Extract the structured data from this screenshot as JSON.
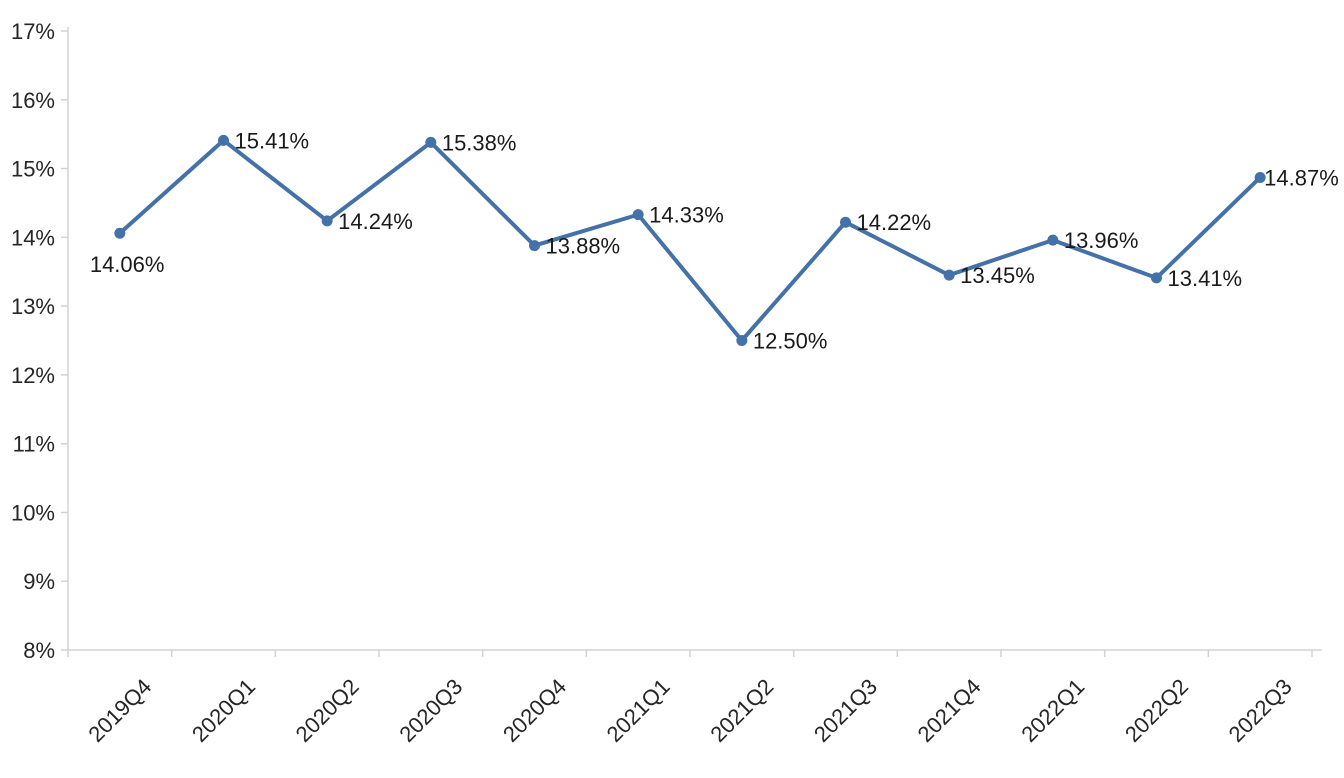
{
  "chart_data": {
    "type": "line",
    "title": "",
    "xlabel": "",
    "ylabel": "",
    "categories": [
      "2019Q4",
      "2020Q1",
      "2020Q2",
      "2020Q3",
      "2020Q4",
      "2021Q1",
      "2021Q2",
      "2021Q3",
      "2021Q4",
      "2022Q1",
      "2022Q2",
      "2022Q3"
    ],
    "series": [
      {
        "name": "quarterly-percentage",
        "values": [
          14.06,
          15.41,
          14.24,
          15.38,
          13.88,
          14.33,
          12.5,
          14.22,
          13.45,
          13.96,
          13.41,
          14.87
        ]
      }
    ],
    "data_labels": [
      "14.06%",
      "15.41%",
      "14.24%",
      "15.38%",
      "13.88%",
      "14.33%",
      "12.50%",
      "14.22%",
      "13.45%",
      "13.96%",
      "13.41%",
      "14.87%"
    ],
    "ylim": [
      8,
      17
    ],
    "y_tick_step": 1,
    "y_tick_labels": [
      "8%",
      "9%",
      "10%",
      "11%",
      "12%",
      "13%",
      "14%",
      "15%",
      "16%",
      "17%"
    ],
    "grid": false,
    "legend": "none",
    "line_color": "#4472a8",
    "marker_color": "#4472a8",
    "axis_color": "#d3d3d3",
    "tick_label_color": "#262626",
    "data_label_color": "#1a1a1a"
  }
}
